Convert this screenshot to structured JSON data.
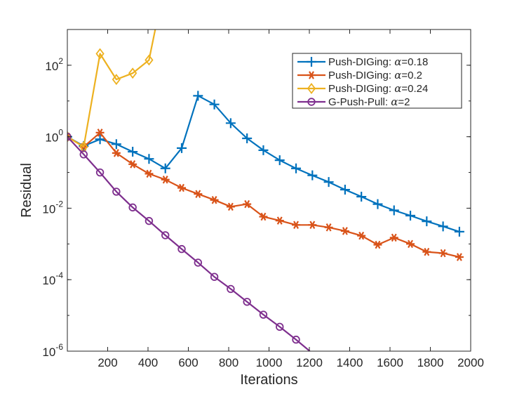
{
  "chart_data": {
    "type": "line",
    "title": "",
    "xlabel": "Iterations",
    "ylabel": "Residual",
    "xlim": [
      0,
      2000
    ],
    "ylim": [
      1e-06,
      1000
    ],
    "yscale": "log",
    "grid": false,
    "legend_position": "top-right",
    "x_ticks": [
      200,
      400,
      600,
      800,
      1000,
      1200,
      1400,
      1600,
      1800,
      2000
    ],
    "x_tick_labels": [
      "200",
      "400",
      "600",
      "800",
      "1000",
      "1200",
      "1400",
      "1600",
      "1800",
      "2000"
    ],
    "y_ticks": [
      1e-06,
      0.0001,
      0.01,
      1,
      100
    ],
    "y_tick_labels": [
      {
        "base": "10",
        "exp": "-6"
      },
      {
        "base": "10",
        "exp": "-4"
      },
      {
        "base": "10",
        "exp": "-2"
      },
      {
        "base": "10",
        "exp": "0"
      },
      {
        "base": "10",
        "exp": "2"
      }
    ],
    "series": [
      {
        "name": "Push-DIGing: α=0.18",
        "legend_prefix": "Push-DIGing: ",
        "legend_param": "α",
        "legend_value": "=0.18",
        "color": "#0072BD",
        "marker": "plus",
        "x": [
          0,
          81,
          162,
          243,
          324,
          405,
          486,
          567,
          648,
          729,
          810,
          891,
          972,
          1053,
          1134,
          1215,
          1296,
          1377,
          1458,
          1539,
          1620,
          1701,
          1782,
          1863,
          1944
        ],
        "y": [
          1.0,
          0.55,
          0.85,
          0.62,
          0.38,
          0.24,
          0.13,
          0.48,
          14.0,
          8.0,
          2.4,
          0.9,
          0.42,
          0.22,
          0.13,
          0.083,
          0.054,
          0.033,
          0.021,
          0.013,
          0.0087,
          0.0062,
          0.0043,
          0.0031,
          0.0022
        ]
      },
      {
        "name": "Push-DIGing: α=0.2",
        "legend_prefix": "Push-DIGing: ",
        "legend_param": "α",
        "legend_value": "=0.2",
        "color": "#D95319",
        "marker": "asterisk",
        "x": [
          0,
          81,
          162,
          243,
          324,
          405,
          486,
          567,
          648,
          729,
          810,
          891,
          972,
          1053,
          1134,
          1215,
          1296,
          1377,
          1458,
          1539,
          1620,
          1701,
          1782,
          1863,
          1944
        ],
        "y": [
          1.0,
          0.52,
          1.3,
          0.35,
          0.17,
          0.092,
          0.063,
          0.037,
          0.025,
          0.017,
          0.011,
          0.013,
          0.0058,
          0.0045,
          0.0034,
          0.0034,
          0.0029,
          0.0023,
          0.0017,
          0.00095,
          0.0015,
          0.001,
          0.0006,
          0.00055,
          0.00043
        ]
      },
      {
        "name": "Push-DIGing: α=0.24",
        "legend_prefix": "Push-DIGing: ",
        "legend_param": "α",
        "legend_value": "=0.24",
        "color": "#EDB120",
        "marker": "diamond",
        "x": [
          0,
          81,
          162,
          243,
          324,
          405,
          436
        ],
        "y": [
          1.0,
          0.52,
          210,
          40,
          60,
          140,
          1000
        ],
        "marker_count": 6
      },
      {
        "name": "G-Push-Pull: α=2",
        "legend_prefix": "G-Push-Pull: ",
        "legend_param": "α",
        "legend_value": "=2",
        "color": "#7E2F8E",
        "marker": "circle",
        "x": [
          0,
          81,
          162,
          243,
          324,
          405,
          486,
          567,
          648,
          729,
          810,
          891,
          972,
          1053,
          1134,
          1202
        ],
        "y": [
          1.0,
          0.32,
          0.1,
          0.029,
          0.0105,
          0.0044,
          0.00175,
          0.00072,
          0.0003,
          0.00012,
          5.5e-05,
          2.4e-05,
          1.05e-05,
          4.8e-06,
          2.1e-06,
          1e-06
        ],
        "marker_count": 15
      }
    ]
  }
}
